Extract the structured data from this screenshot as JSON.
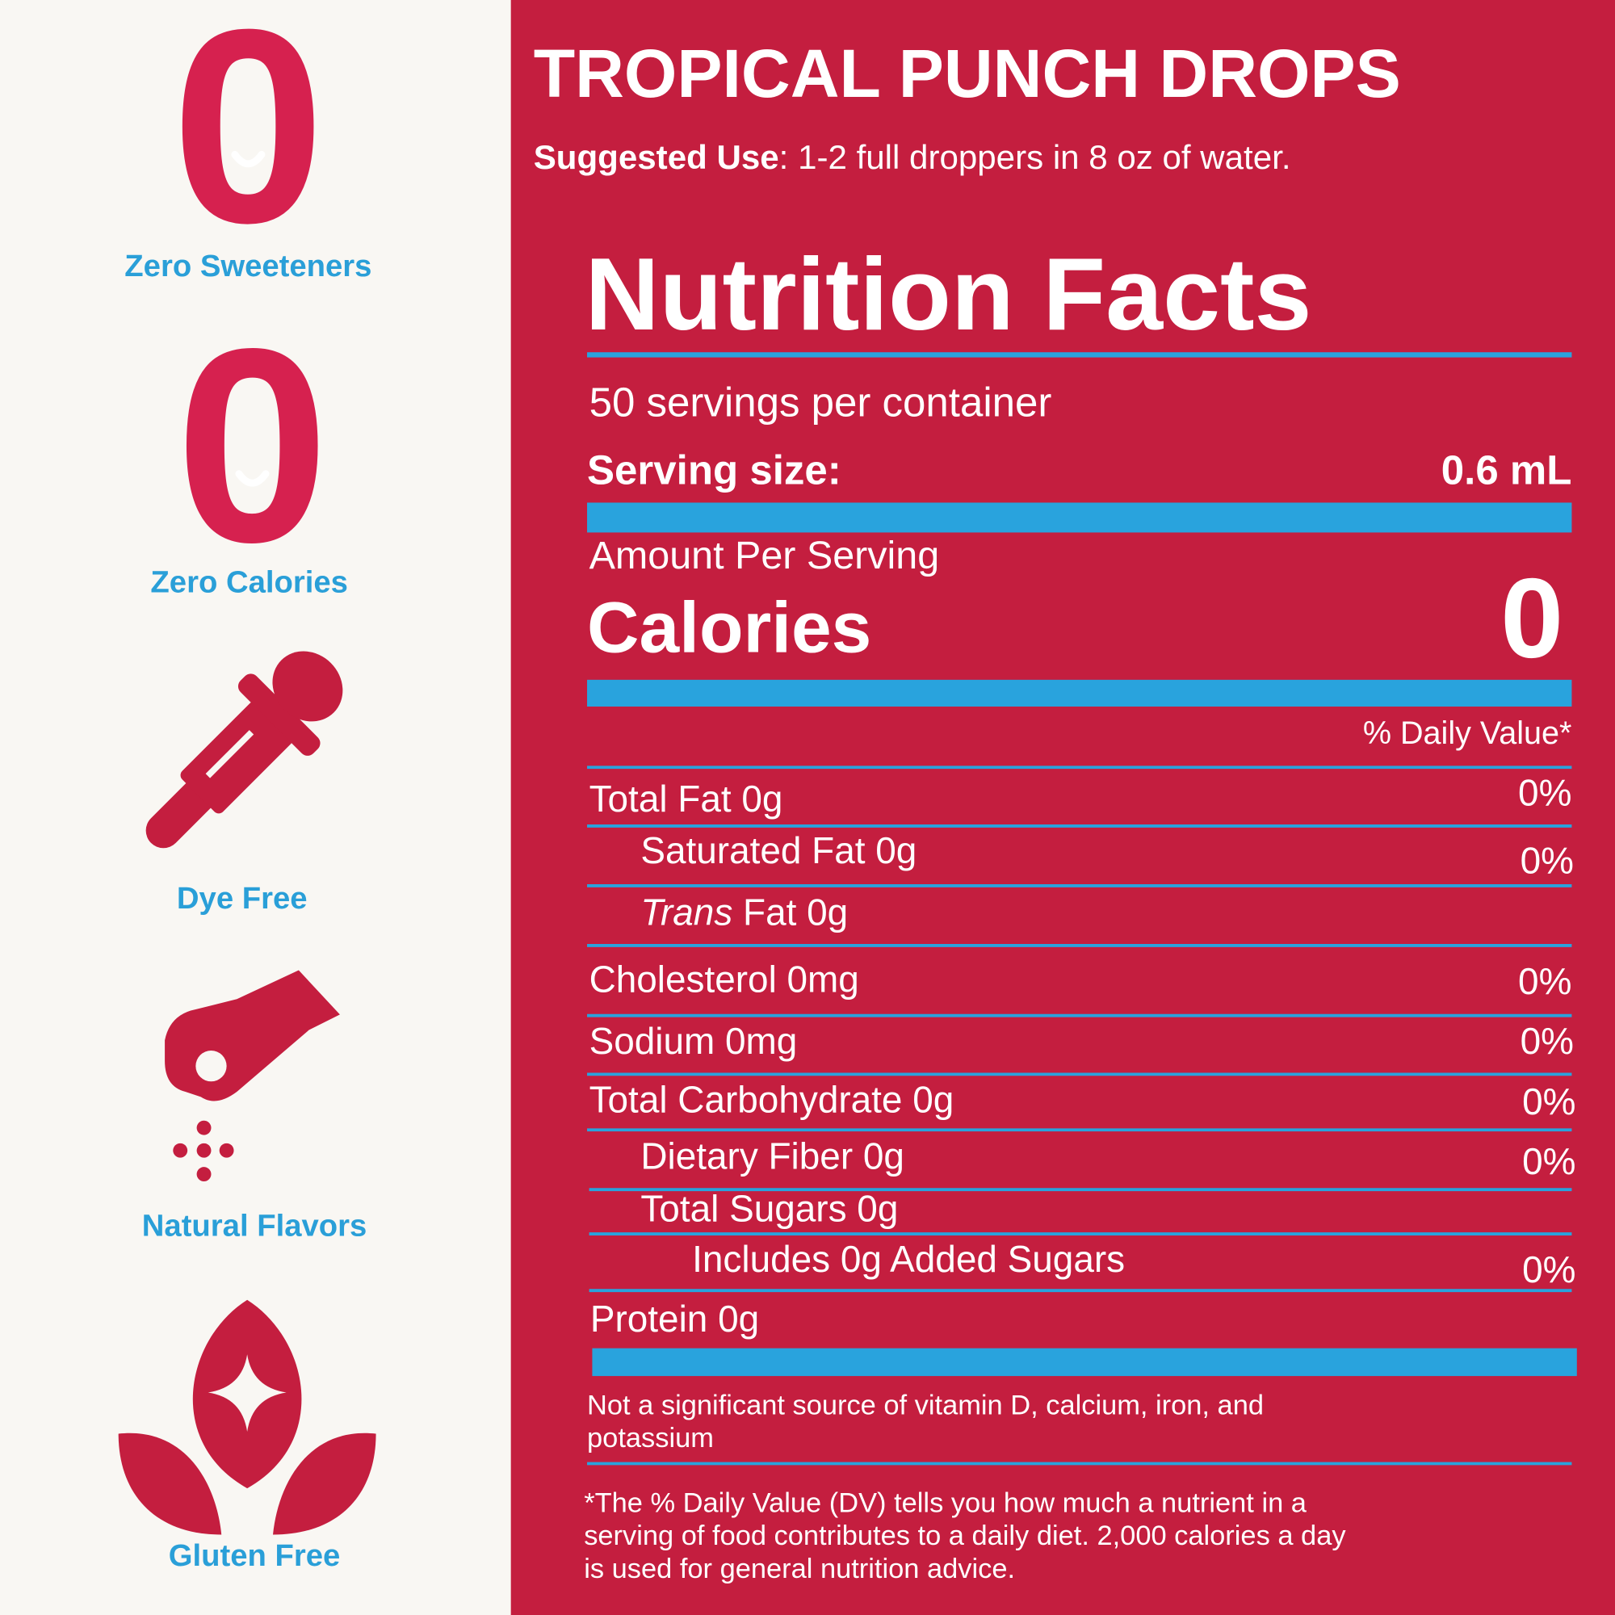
{
  "badges": [
    {
      "icon": "0",
      "label": "Zero Sweeteners"
    },
    {
      "icon": "0",
      "label": "Zero Calories"
    },
    {
      "label": "Dye Free"
    },
    {
      "label": "Natural Flavors"
    },
    {
      "label": "Gluten Free"
    }
  ],
  "title": "TROPICAL PUNCH DROPS",
  "suggested_use": {
    "label": "Suggested Use",
    "text": ": 1-2 full droppers in 8 oz of water."
  },
  "nutrition": {
    "heading": "Nutrition Facts",
    "servings": "50 servings per container",
    "serving_size_label": "Serving size:",
    "serving_size_value": "0.6 mL",
    "amount_label": "Amount Per Serving",
    "calories_label": "Calories",
    "calories_value": 0,
    "dv_header": "% Daily Value*",
    "rows": [
      {
        "name": "Total Fat 0g",
        "dv": "0%"
      },
      {
        "name": "Saturated Fat 0g",
        "dv": "0%"
      },
      {
        "name_italic": "Trans",
        "name": " Fat 0g"
      },
      {
        "name": "Cholesterol 0mg",
        "dv": "0%"
      },
      {
        "name": "Sodium 0mg",
        "dv": "0%"
      },
      {
        "name": "Total Carbohydrate 0g",
        "dv": "0%"
      },
      {
        "name": "Dietary Fiber 0g",
        "dv": "0%"
      },
      {
        "name": "Total Sugars 0g"
      },
      {
        "name": "Includes 0g Added Sugars",
        "dv": "0%"
      },
      {
        "name": "Protein 0g"
      }
    ],
    "not_significant": [
      "Not a significant source of vitamin D, calcium, iron, and",
      "potassium"
    ],
    "footnote": [
      "*The % Daily Value (DV) tells you how much a nutrient in a",
      "serving of food contributes to a daily diet. 2,000 calories a day",
      "is used for general nutrition advice."
    ]
  }
}
